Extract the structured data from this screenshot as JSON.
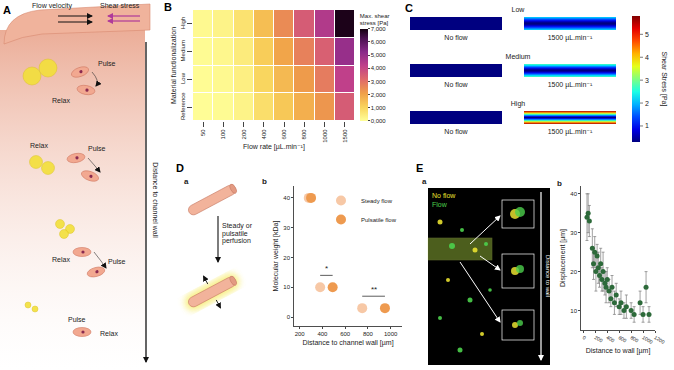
{
  "chart_data": [
    {
      "type": "heatmap",
      "panel": "B",
      "x_label": "Flow rate [µL.min⁻¹]",
      "y_label": "Material functionalization",
      "categories": [
        "50",
        "100",
        "200",
        "400",
        "600",
        "800",
        "1000",
        "1500"
      ],
      "y_categories": [
        "Reference",
        "Low",
        "Medium",
        "High"
      ],
      "values": [
        [
          50,
          100,
          300,
          800,
          1300,
          1800,
          2300,
          3500
        ],
        [
          80,
          150,
          400,
          1000,
          1600,
          2200,
          2800,
          4200
        ],
        [
          100,
          200,
          500,
          1200,
          2000,
          2700,
          3400,
          5000
        ],
        [
          150,
          300,
          700,
          1500,
          2500,
          3500,
          4500,
          6900
        ]
      ],
      "colorbar": {
        "title": "Max. shear\nstress [Pa]",
        "range": [
          0,
          7000
        ],
        "ticks": [
          {
            "value": 0,
            "label": "0,000"
          },
          {
            "value": 1000,
            "label": "1,000"
          },
          {
            "value": 2000,
            "label": "2,000"
          },
          {
            "value": 3000,
            "label": "3,000"
          },
          {
            "value": 4000,
            "label": "4,000"
          },
          {
            "value": 5000,
            "label": "5,000"
          },
          {
            "value": 6000,
            "label": "6,000"
          },
          {
            "value": 7000,
            "label": "7,000"
          }
        ]
      }
    },
    {
      "type": "scatter",
      "x_label": "Distance to channel wall [µm]",
      "y_label": "Molecular weight [kDa]",
      "xlim": [
        150,
        1100
      ],
      "xticks": [
        200,
        400,
        600,
        800,
        1000
      ],
      "ylim": [
        -3,
        44
      ],
      "yticks": [
        0,
        10,
        20,
        30,
        40
      ],
      "legend": "upper right",
      "series": [
        {
          "name": "Steady flow",
          "color": "#f7c8a6",
          "x": [
            280,
            380,
            750
          ],
          "values": [
            40,
            10,
            3
          ]
        },
        {
          "name": "Pulsatile flow",
          "color": "#ee9a4f",
          "x": [
            300,
            490,
            950
          ],
          "values": [
            40,
            10,
            3
          ]
        }
      ],
      "annotations": [
        {
          "text": "*",
          "x": [
            380,
            490
          ],
          "y": 14
        },
        {
          "text": "**",
          "x": [
            750,
            950
          ],
          "y": 7
        }
      ]
    },
    {
      "type": "scatter",
      "x_label": "Distance to wall [µm]",
      "y_label": "Displacement [µm]",
      "xlim": [
        -40,
        1200
      ],
      "xticks": [
        0,
        200,
        400,
        600,
        800,
        1000,
        1200
      ],
      "ylim": [
        5,
        42
      ],
      "yticks": [
        10,
        20,
        30,
        40
      ],
      "color": "#2d6a3a",
      "x": [
        60,
        80,
        100,
        150,
        170,
        190,
        210,
        230,
        250,
        270,
        290,
        310,
        330,
        360,
        380,
        400,
        430,
        460,
        480,
        520,
        550,
        600,
        630,
        680,
        720,
        800,
        850,
        950,
        1000,
        1050,
        1100
      ],
      "values": [
        34,
        35,
        33,
        26,
        22,
        25,
        20,
        24,
        21,
        19,
        22,
        18,
        20,
        17,
        16,
        18,
        15,
        13,
        16,
        12,
        14,
        11,
        12,
        10,
        11,
        10,
        9,
        12,
        9,
        16,
        9
      ],
      "errors": [
        6,
        5,
        4,
        5,
        4,
        4,
        5,
        3,
        4,
        3,
        4,
        3,
        5,
        3,
        4,
        3,
        3,
        2,
        3,
        3,
        3,
        2,
        3,
        2,
        3,
        2,
        2,
        3,
        2,
        4,
        2
      ]
    }
  ],
  "diagrams": {
    "A": {
      "label": "A",
      "flow_velocity": "Flow velocity",
      "shear_stress": "Shear stress",
      "axis": "Distance to channel wall",
      "groups": [
        {
          "pulse": "Pulse",
          "relax": "Relax"
        },
        {
          "pulse": "Pulse",
          "relax": "Relax"
        },
        {
          "pulse": "Pulse",
          "relax": "Relax"
        },
        {
          "pulse": "Pulse",
          "relax": "Relax"
        }
      ]
    },
    "C": {
      "label": "C",
      "rows": [
        {
          "name": "Low",
          "wall_stress": 2.2
        },
        {
          "name": "Medium",
          "wall_stress": 2.8
        },
        {
          "name": "High",
          "wall_stress": 5.6
        }
      ],
      "no_flow": "No flow",
      "flow": "1500 µL.min⁻¹",
      "colorbar": {
        "title": "Shear Stress [Pa]",
        "range": [
          0.3,
          5.8
        ],
        "ticks": [
          1,
          2,
          3,
          4,
          5
        ]
      }
    },
    "D": {
      "label": "D",
      "a": "a",
      "b": "b",
      "perfusion": "Steady or\npulsatile\nperfusion"
    },
    "E": {
      "label": "E",
      "a": "a",
      "b": "b",
      "legend": [
        {
          "text": "No flow",
          "color": "#e8e030"
        },
        {
          "text": "Flow",
          "color": "#4cd04c"
        }
      ],
      "arrow": "Distance to wall"
    }
  }
}
